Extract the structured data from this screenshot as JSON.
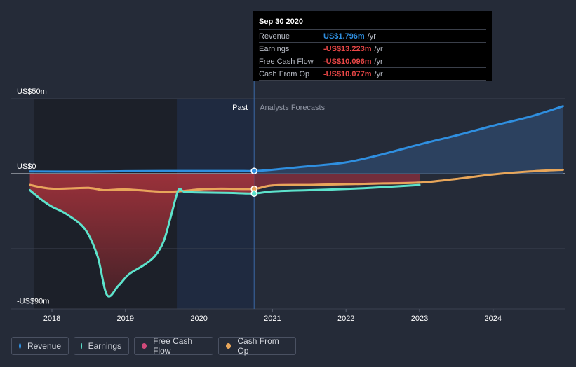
{
  "chart_data": {
    "type": "line",
    "x_axis": {
      "range": [
        2017.7,
        2024.95
      ],
      "ticks": [
        2018,
        2019,
        2020,
        2021,
        2022,
        2023,
        2024
      ],
      "tick_labels": [
        "2018",
        "2019",
        "2020",
        "2021",
        "2022",
        "2023",
        "2024"
      ]
    },
    "y_axis": {
      "range": [
        -90,
        50
      ],
      "grid_values": [
        50,
        0,
        -50,
        -90
      ],
      "labels": [
        {
          "value": 50,
          "text": "US$50m"
        },
        {
          "value": 0,
          "text": "US$0"
        },
        {
          "value": -90,
          "text": "-US$90m"
        }
      ]
    },
    "regions": {
      "past_label": "Past",
      "forecast_label": "Analysts Forecasts",
      "past_end": 2020.75,
      "past_start": 2019.7
    },
    "series": [
      {
        "name": "Revenue",
        "color": "#2f8fe0",
        "points": [
          [
            2017.7,
            1.5
          ],
          [
            2018.5,
            1.4
          ],
          [
            2019.0,
            1.7
          ],
          [
            2019.5,
            1.8
          ],
          [
            2020.0,
            1.8
          ],
          [
            2020.5,
            1.8
          ],
          [
            2020.75,
            1.8
          ],
          [
            2021.0,
            2.6
          ],
          [
            2021.5,
            5.0
          ],
          [
            2022.0,
            7.5
          ],
          [
            2022.5,
            13.0
          ],
          [
            2023.0,
            19.5
          ],
          [
            2023.5,
            25.5
          ],
          [
            2024.0,
            32.0
          ],
          [
            2024.5,
            38.0
          ],
          [
            2024.95,
            45.0
          ]
        ]
      },
      {
        "name": "Earnings",
        "color": "#5de3cc",
        "points": [
          [
            2017.7,
            -11
          ],
          [
            2017.85,
            -17
          ],
          [
            2018.0,
            -22
          ],
          [
            2018.2,
            -27
          ],
          [
            2018.45,
            -37
          ],
          [
            2018.62,
            -55
          ],
          [
            2018.75,
            -81
          ],
          [
            2018.9,
            -75
          ],
          [
            2019.05,
            -67
          ],
          [
            2019.25,
            -61
          ],
          [
            2019.4,
            -55
          ],
          [
            2019.52,
            -45
          ],
          [
            2019.62,
            -28
          ],
          [
            2019.72,
            -11
          ],
          [
            2019.8,
            -12
          ],
          [
            2020.0,
            -12.5
          ],
          [
            2020.4,
            -12.8
          ],
          [
            2020.75,
            -13.2
          ],
          [
            2021.0,
            -11.8
          ],
          [
            2021.5,
            -11.0
          ],
          [
            2022.0,
            -10.2
          ],
          [
            2022.5,
            -9.0
          ],
          [
            2023.0,
            -7.5
          ]
        ]
      },
      {
        "name": "Free Cash Flow",
        "color": "#d04a7a",
        "points": [
          [
            2017.7,
            -7.5
          ],
          [
            2018.0,
            -10.0
          ],
          [
            2018.5,
            -9.5
          ],
          [
            2018.7,
            -11.0
          ],
          [
            2019.0,
            -10.5
          ],
          [
            2019.5,
            -12.0
          ],
          [
            2019.8,
            -11.5
          ],
          [
            2020.0,
            -10.5
          ],
          [
            2020.3,
            -10.0
          ],
          [
            2020.75,
            -10.1
          ],
          [
            2021.0,
            -7.8
          ],
          [
            2021.5,
            -7.5
          ],
          [
            2022.0,
            -7.0
          ],
          [
            2022.5,
            -6.5
          ],
          [
            2023.0,
            -6.0
          ]
        ]
      },
      {
        "name": "Cash From Op",
        "color": "#e8a65a",
        "points": [
          [
            2017.7,
            -7.5
          ],
          [
            2018.0,
            -10.0
          ],
          [
            2018.5,
            -9.5
          ],
          [
            2018.7,
            -11.0
          ],
          [
            2019.0,
            -10.5
          ],
          [
            2019.5,
            -12.0
          ],
          [
            2019.8,
            -11.5
          ],
          [
            2020.0,
            -10.5
          ],
          [
            2020.3,
            -10.0
          ],
          [
            2020.75,
            -10.1
          ],
          [
            2021.0,
            -7.8
          ],
          [
            2021.5,
            -7.5
          ],
          [
            2022.0,
            -7.0
          ],
          [
            2022.5,
            -6.5
          ],
          [
            2023.0,
            -6.0
          ],
          [
            2023.5,
            -3.5
          ],
          [
            2024.0,
            -0.5
          ],
          [
            2024.5,
            1.5
          ],
          [
            2024.95,
            2.6
          ]
        ]
      }
    ],
    "tooltip": {
      "date": "Sep 30 2020",
      "rows": [
        {
          "label": "Revenue",
          "value": "US$1.796m",
          "unit": "/yr",
          "color": "#2f8fe0"
        },
        {
          "label": "Earnings",
          "value": "-US$13.223m",
          "unit": "/yr",
          "color": "#e84646"
        },
        {
          "label": "Free Cash Flow",
          "value": "-US$10.096m",
          "unit": "/yr",
          "color": "#e84646"
        },
        {
          "label": "Cash From Op",
          "value": "-US$10.077m",
          "unit": "/yr",
          "color": "#e84646"
        }
      ]
    },
    "legend": [
      {
        "label": "Revenue",
        "color": "#2f8fe0"
      },
      {
        "label": "Earnings",
        "color": "#5de3cc"
      },
      {
        "label": "Free Cash Flow",
        "color": "#d04a7a"
      },
      {
        "label": "Cash From Op",
        "color": "#e8a65a"
      }
    ]
  }
}
